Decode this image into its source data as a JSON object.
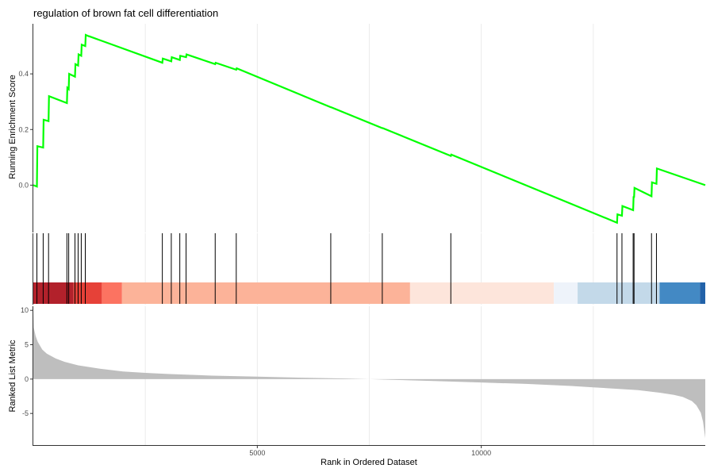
{
  "chart_data": {
    "type": "line",
    "title": "regulation of brown fat cell differentiation",
    "xlabel": "Rank in Ordered Dataset",
    "x_range": [
      0,
      15000
    ],
    "x_ticks": [
      5000,
      10000
    ],
    "x_tick_labels": [
      "5000",
      "10000"
    ],
    "grid": true,
    "series": [
      {
        "ylabel": "Running Enrichment Score",
        "color": "#00ff00",
        "ylim": [
          -0.17,
          0.58
        ],
        "y_ticks": [
          0.0,
          0.2,
          0.4
        ],
        "y_tick_labels": [
          "0.0",
          "0.2",
          "0.4"
        ],
        "x": [
          0,
          80,
          90,
          220,
          230,
          340,
          350,
          750,
          760,
          790,
          800,
          930,
          940,
          1000,
          1010,
          1070,
          1080,
          1160,
          1170,
          1240,
          1250,
          2880,
          2890,
          3080,
          3090,
          3270,
          3280,
          3410,
          3420,
          4060,
          4070,
          4530,
          4540,
          6640,
          6650,
          7790,
          7800,
          9320,
          9330,
          13030,
          13040,
          13140,
          13150,
          13390,
          13400,
          13410,
          13420,
          13800,
          13810,
          13910,
          13920,
          15000
        ],
        "y": [
          0.0,
          -0.005,
          0.14,
          0.135,
          0.235,
          0.23,
          0.32,
          0.295,
          0.35,
          0.345,
          0.4,
          0.39,
          0.435,
          0.43,
          0.47,
          0.465,
          0.505,
          0.5,
          0.54,
          0.535,
          0.535,
          0.44,
          0.455,
          0.445,
          0.46,
          0.45,
          0.465,
          0.46,
          0.47,
          0.435,
          0.44,
          0.415,
          0.42,
          0.28,
          0.28,
          0.205,
          0.205,
          0.105,
          0.11,
          -0.135,
          -0.105,
          -0.11,
          -0.075,
          -0.09,
          -0.04,
          -0.045,
          -0.01,
          -0.04,
          0.01,
          0.005,
          0.06,
          0.0
        ]
      },
      {
        "name": "hits",
        "type": "rug",
        "x": [
          80,
          220,
          340,
          750,
          790,
          930,
          1000,
          1070,
          1160,
          2880,
          3080,
          3270,
          3410,
          4060,
          4530,
          6640,
          7790,
          9320,
          13030,
          13140,
          13390,
          13410,
          13800,
          13910
        ]
      },
      {
        "name": "ranked_list_bands",
        "type": "color-band",
        "bands": [
          {
            "from": 0,
            "to": 900,
            "color": "#b2212b"
          },
          {
            "from": 900,
            "to": 1530,
            "color": "#e64138"
          },
          {
            "from": 1530,
            "to": 1980,
            "color": "#fc7361"
          },
          {
            "from": 1980,
            "to": 8410,
            "color": "#fcb399"
          },
          {
            "from": 8410,
            "to": 11620,
            "color": "#fde5db"
          },
          {
            "from": 11620,
            "to": 12150,
            "color": "#eef3fa"
          },
          {
            "from": 12150,
            "to": 13980,
            "color": "#c3d9e9"
          },
          {
            "from": 13980,
            "to": 14880,
            "color": "#4389c4"
          },
          {
            "from": 14880,
            "to": 15000,
            "color": "#2262a9"
          }
        ]
      },
      {
        "ylabel": "Ranked List Metric",
        "type": "area",
        "color": "#bebebe",
        "ylim": [
          -9.6,
          10.6
        ],
        "y_ticks": [
          -5,
          0,
          5,
          10
        ],
        "y_tick_labels": [
          "-5",
          "0",
          "5",
          "10"
        ],
        "x": [
          0,
          10,
          50,
          100,
          200,
          300,
          500,
          700,
          1000,
          1500,
          2000,
          2500,
          3000,
          4000,
          5000,
          6000,
          7000,
          7500,
          8000,
          9000,
          10000,
          11000,
          12000,
          12500,
          13000,
          13500,
          14000,
          14300,
          14500,
          14700,
          14800,
          14900,
          14950,
          15000
        ],
        "y": [
          10.0,
          7.5,
          6.3,
          5.4,
          4.3,
          3.7,
          3.0,
          2.5,
          2.0,
          1.5,
          1.1,
          0.9,
          0.75,
          0.5,
          0.35,
          0.2,
          0.08,
          0.0,
          -0.1,
          -0.3,
          -0.5,
          -0.7,
          -1.0,
          -1.2,
          -1.4,
          -1.6,
          -2.0,
          -2.3,
          -2.6,
          -3.2,
          -3.8,
          -4.9,
          -6.2,
          -8.6
        ]
      }
    ]
  }
}
